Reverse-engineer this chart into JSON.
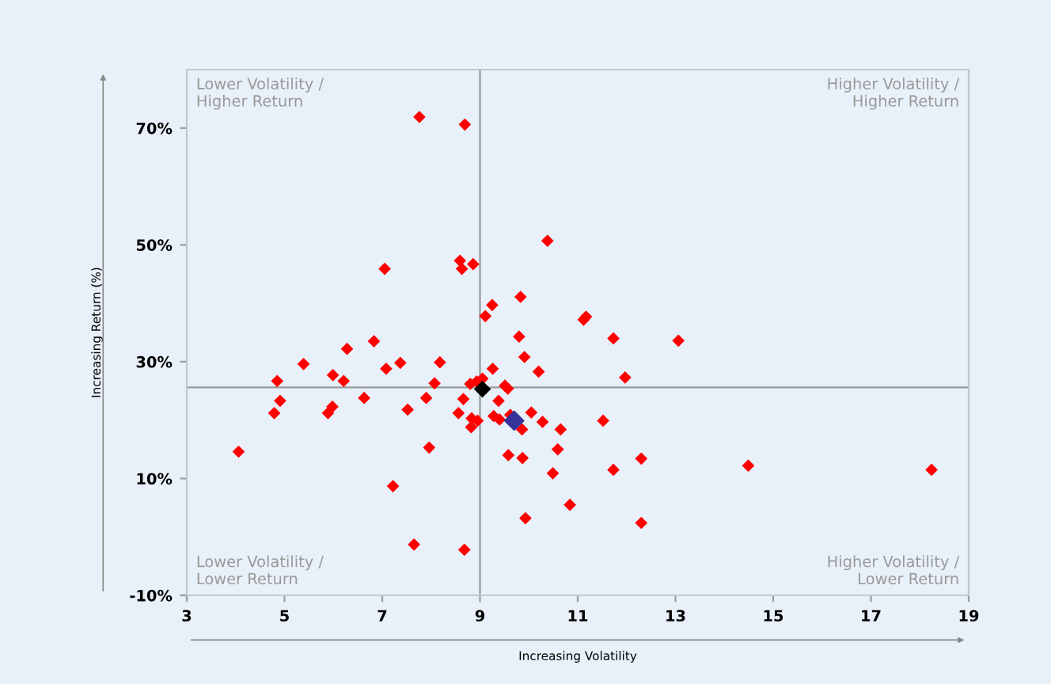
{
  "chart_data": {
    "type": "scatter",
    "xlabel": "Increasing Volatility",
    "ylabel": "Increasing Return (%)",
    "xlim": [
      3,
      19
    ],
    "xticks": [
      3,
      5,
      7,
      9,
      11,
      13,
      15,
      17,
      19
    ],
    "ylim": [
      -10,
      80
    ],
    "yticks": [
      {
        "value": -10,
        "label": "-10%"
      },
      {
        "value": 10,
        "label": "10%"
      },
      {
        "value": 30,
        "label": "30%"
      },
      {
        "value": 50,
        "label": "50%"
      },
      {
        "value": 70,
        "label": "70%"
      }
    ],
    "marker": "diamond",
    "grid": false,
    "legend": false,
    "annotations": [
      "Lower Volatility /\nHigher Return",
      "Higher Volatility /\nHigher Return",
      "Lower Volatility /\nLower Return",
      "Higher Volatility /\nLower Return"
    ],
    "ref_lines": [
      {
        "axis": "x",
        "value": 9,
        "color": "#999999"
      },
      {
        "axis": "y",
        "value": 25.6,
        "color": "#999999"
      }
    ],
    "series": [
      {
        "color": "#ff0000",
        "x": [
          7.76,
          8.69,
          8.59,
          8.63,
          8.86,
          7.05,
          9.11,
          6.83,
          6.28,
          5.39,
          7.08,
          7.37,
          8.18,
          5.99,
          6.21,
          4.85,
          8.07,
          8.8,
          8.93,
          9.05,
          4.91,
          6.63,
          7.9,
          8.66,
          4.79,
          5.89,
          5.98,
          7.52,
          8.56,
          8.83,
          8.95,
          8.82,
          4.06,
          7.96,
          7.22,
          7.65,
          8.68,
          10.38,
          9.83,
          9.25,
          11.12,
          11.17,
          9.8,
          11.73,
          13.06,
          9.91,
          10.2,
          9.26,
          11.97,
          9.51,
          9.57,
          9.38,
          9.28,
          9.4,
          9.62,
          10.05,
          10.28,
          9.86,
          10.65,
          11.52,
          9.58,
          9.87,
          10.59,
          10.49,
          11.73,
          12.3,
          10.84,
          9.93,
          12.3,
          14.49,
          18.24
        ],
        "values": [
          71.9,
          70.6,
          47.3,
          45.9,
          46.7,
          45.9,
          37.8,
          33.5,
          32.2,
          29.6,
          28.8,
          29.8,
          29.9,
          27.7,
          26.7,
          26.7,
          26.3,
          26.2,
          26.6,
          27.1,
          23.3,
          23.8,
          23.8,
          23.6,
          21.2,
          21.2,
          22.3,
          21.8,
          21.2,
          20.3,
          19.9,
          18.8,
          14.6,
          15.3,
          8.7,
          -1.3,
          -2.2,
          50.7,
          41.1,
          39.7,
          37.2,
          37.7,
          34.3,
          34.0,
          33.6,
          30.8,
          28.3,
          28.8,
          27.3,
          25.9,
          25.4,
          23.3,
          20.7,
          20.1,
          20.9,
          21.3,
          19.7,
          18.4,
          18.4,
          19.9,
          14.0,
          13.5,
          15.0,
          10.9,
          11.5,
          13.4,
          5.5,
          3.2,
          2.4,
          12.2,
          11.5
        ]
      },
      {
        "color": "#000000",
        "x": [
          9.05
        ],
        "values": [
          25.3
        ]
      },
      {
        "color": "#333399",
        "x": [
          9.7
        ],
        "values": [
          19.9
        ]
      }
    ]
  }
}
